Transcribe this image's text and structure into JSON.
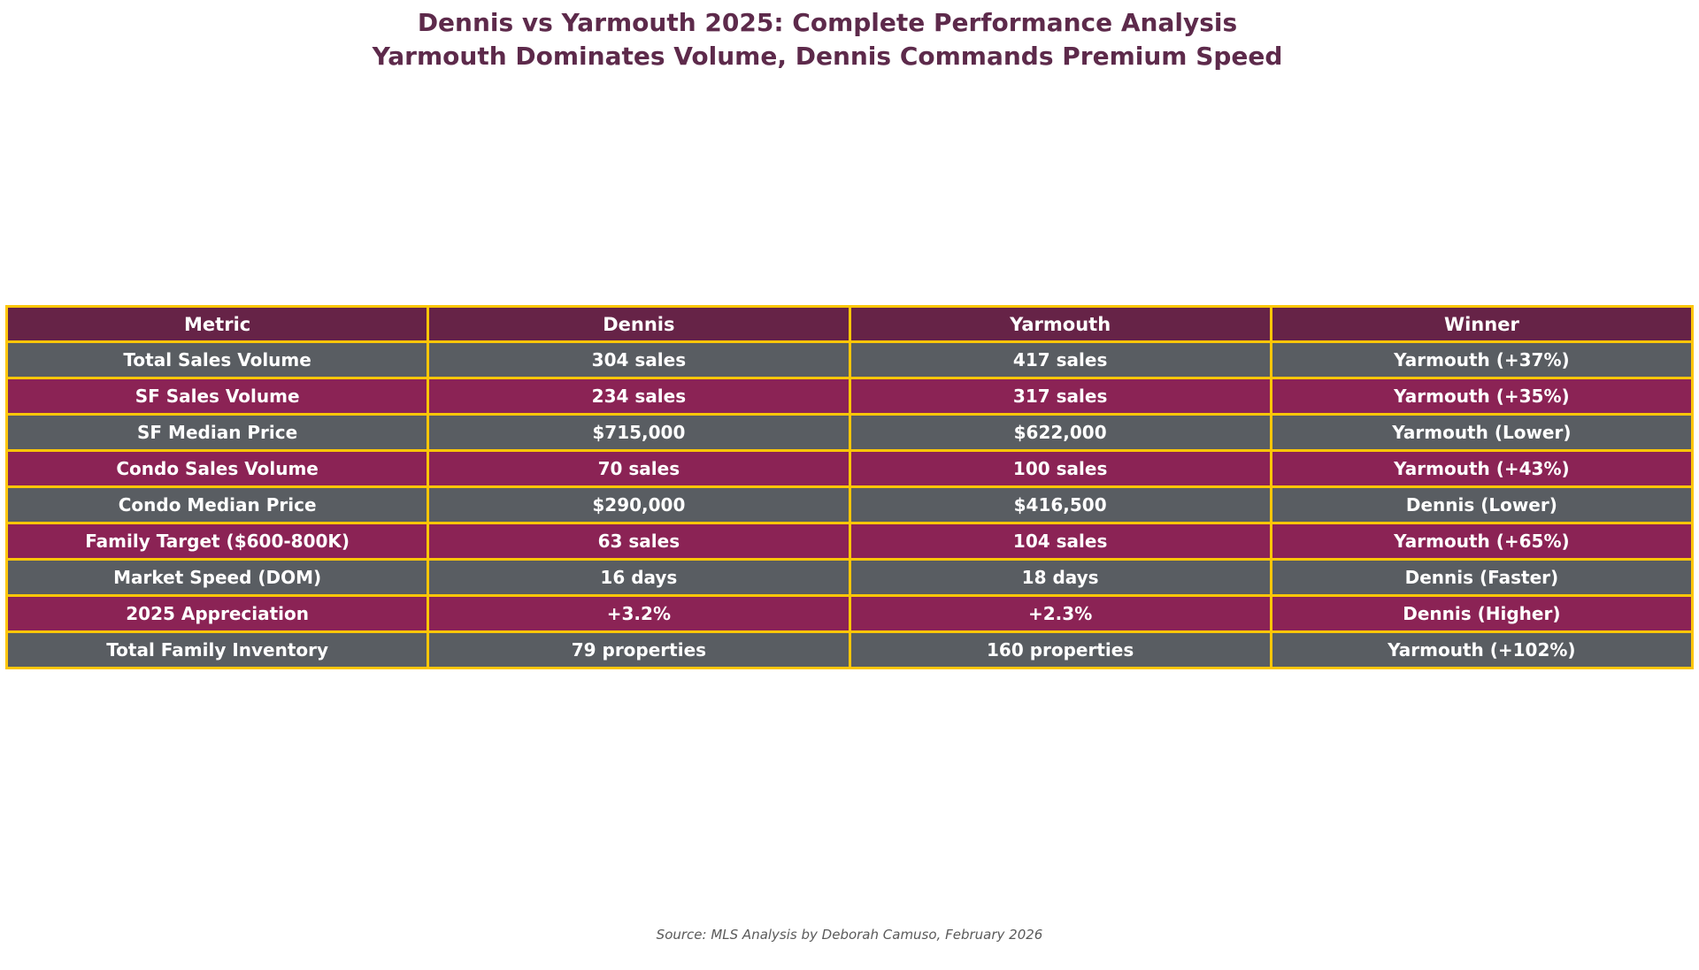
{
  "title": {
    "line1": "Dennis vs Yarmouth 2025: Complete Performance Analysis",
    "line2": "Yarmouth Dominates Volume, Dennis Commands Premium Speed"
  },
  "chart_data": {
    "type": "table",
    "title": "Dennis vs Yarmouth 2025: Complete Performance Analysis",
    "subtitle": "Yarmouth Dominates Volume, Dennis Commands Premium Speed",
    "columns": [
      "Metric",
      "Dennis",
      "Yarmouth",
      "Winner"
    ],
    "rows": [
      {
        "metric": "Total Sales Volume",
        "dennis": "304 sales",
        "yarmouth": "417 sales",
        "winner": "Yarmouth (+37%)"
      },
      {
        "metric": "SF Sales Volume",
        "dennis": "234 sales",
        "yarmouth": "317 sales",
        "winner": "Yarmouth (+35%)"
      },
      {
        "metric": "SF Median Price",
        "dennis": "$715,000",
        "yarmouth": "$622,000",
        "winner": "Yarmouth (Lower)"
      },
      {
        "metric": "Condo Sales Volume",
        "dennis": "70 sales",
        "yarmouth": "100 sales",
        "winner": "Yarmouth (+43%)"
      },
      {
        "metric": "Condo Median Price",
        "dennis": "$290,000",
        "yarmouth": "$416,500",
        "winner": "Dennis (Lower)"
      },
      {
        "metric": "Family Target ($600-800K)",
        "dennis": "63 sales",
        "yarmouth": "104 sales",
        "winner": "Yarmouth (+65%)"
      },
      {
        "metric": "Market Speed (DOM)",
        "dennis": "16 days",
        "yarmouth": "18 days",
        "winner": "Dennis (Faster)"
      },
      {
        "metric": "2025 Appreciation",
        "dennis": "+3.2%",
        "yarmouth": "+2.3%",
        "winner": "Dennis (Higher)"
      },
      {
        "metric": "Total Family Inventory",
        "dennis": "79 properties",
        "yarmouth": "160 properties",
        "winner": "Yarmouth (+102%)"
      }
    ]
  },
  "footer": {
    "source": "Source: MLS Analysis by Deborah Camuso, February 2026"
  },
  "colors": {
    "title": "#5d2a4b",
    "header_bg": "#662347",
    "row_gray": "#595d62",
    "row_maroon": "#8b2355",
    "gold_text": "#ffc51d",
    "border_gold": "#fdc608",
    "value_text": "#ffffff",
    "source_text": "#5a5a5a"
  }
}
